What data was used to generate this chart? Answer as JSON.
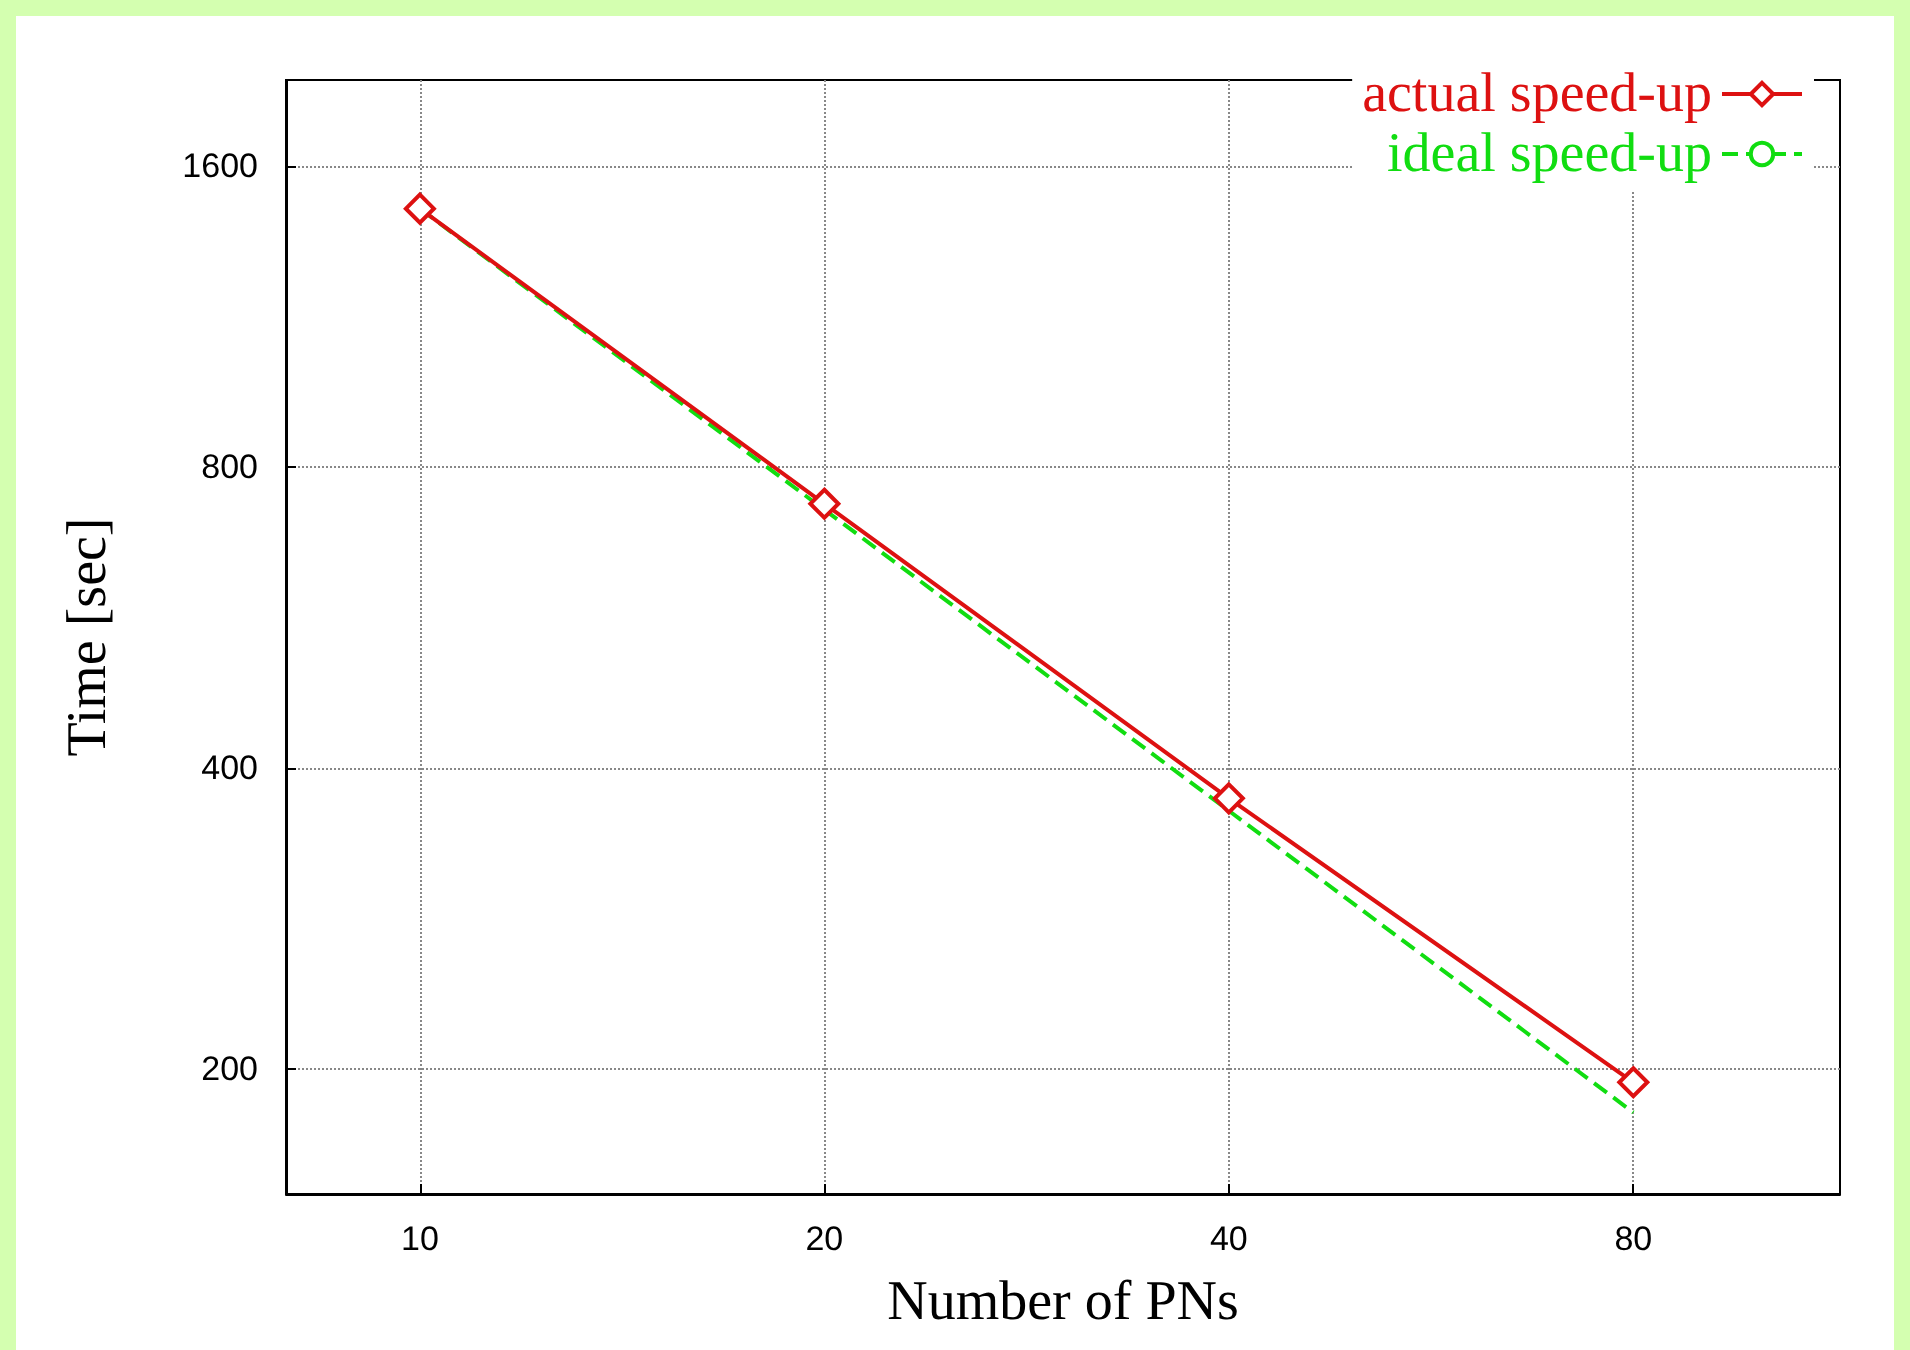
{
  "chart_data": {
    "type": "line",
    "xlabel": "Number of PNs",
    "ylabel": "Time [sec]",
    "x": [
      10,
      20,
      40,
      80
    ],
    "series": [
      {
        "name": "actual speed-up",
        "color": "#dd1111",
        "values": [
          1450,
          735,
          373,
          194
        ],
        "marker": "diamond",
        "line_style": "solid"
      },
      {
        "name": "ideal speed-up",
        "color": "#11dd11",
        "values": [
          1450,
          725,
          362.5,
          181
        ],
        "marker": "none",
        "line_style": "dashed"
      }
    ],
    "log": "xy",
    "xlim": [
      7.95,
      114
    ],
    "xticks": [
      10,
      20,
      40,
      80
    ],
    "ylim": [
      150,
      1950
    ],
    "yticks": [
      200,
      400,
      800,
      1600
    ],
    "grid": true,
    "legend": "top right"
  }
}
